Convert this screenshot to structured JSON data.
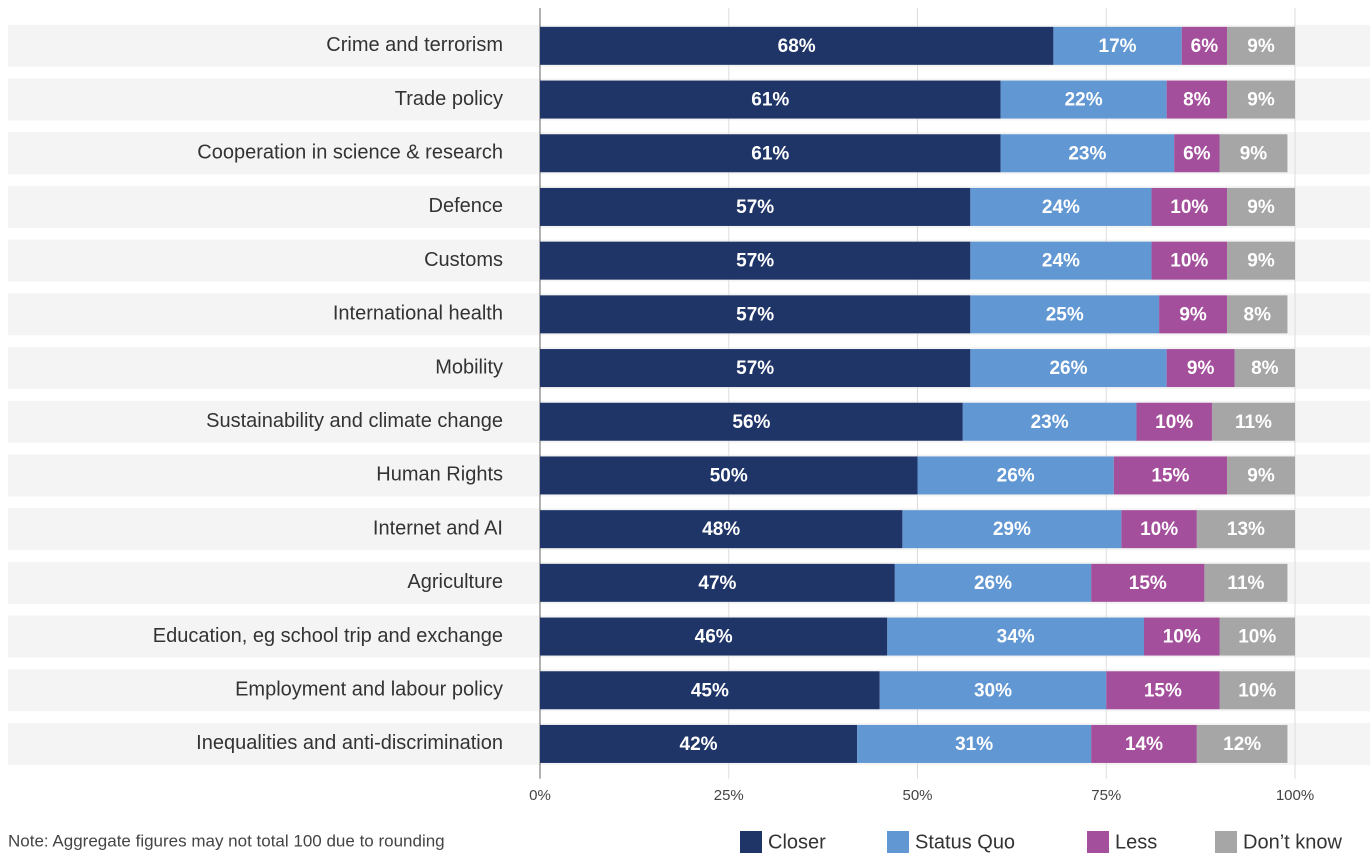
{
  "chart_data": {
    "type": "stacked_bar_horizontal",
    "note": "Note: Aggregate figures may not total 100 due to rounding",
    "categories": [
      "Crime and terrorism",
      "Trade policy",
      "Cooperation in science & research",
      "Defence",
      "Customs",
      "International health",
      "Mobility",
      "Sustainability and climate change",
      "Human Rights",
      "Internet and AI",
      "Agriculture",
      "Education, eg school trip and exchange",
      "Employment and labour policy",
      "Inequalities and anti-discrimination"
    ],
    "series": [
      {
        "name": "Closer",
        "color": "#1f3467",
        "values": [
          68,
          61,
          61,
          57,
          57,
          57,
          57,
          56,
          50,
          48,
          47,
          46,
          45,
          42
        ],
        "value_labels": [
          "68%",
          "61%",
          "61%",
          "57%",
          "57%",
          "57%",
          "57%",
          "56%",
          "50%",
          "48%",
          "47%",
          "46%",
          "45%",
          "42%"
        ]
      },
      {
        "name": "Status Quo",
        "color": "#6197d2",
        "values": [
          17,
          22,
          23,
          24,
          24,
          25,
          26,
          23,
          26,
          29,
          26,
          34,
          30,
          31
        ],
        "value_labels": [
          "17%",
          "22%",
          "23%",
          "24%",
          "24%",
          "25%",
          "26%",
          "23%",
          "26%",
          "29%",
          "26%",
          "34%",
          "30%",
          "31%"
        ]
      },
      {
        "name": "Less",
        "color": "#a34f9b",
        "values": [
          6,
          8,
          6,
          10,
          10,
          9,
          9,
          10,
          15,
          10,
          15,
          10,
          15,
          14
        ],
        "value_labels": [
          "6%",
          "8%",
          "6%",
          "10%",
          "10%",
          "9%",
          "9%",
          "10%",
          "15%",
          "10%",
          "15%",
          "10%",
          "15%",
          "14%"
        ]
      },
      {
        "name": "Don’t know",
        "color": "#a6a6a6",
        "values": [
          9,
          9,
          9,
          9,
          9,
          8,
          8,
          11,
          9,
          13,
          11,
          10,
          10,
          12
        ],
        "value_labels": [
          "9%",
          "9%",
          "9%",
          "9%",
          "9%",
          "8%",
          "8%",
          "11%",
          "9%",
          "13%",
          "11%",
          "10%",
          "10%",
          "12%"
        ]
      }
    ],
    "xlim": [
      0,
      100
    ],
    "xticks": [
      {
        "value": 0,
        "label": "0%"
      },
      {
        "value": 25,
        "label": "25%"
      },
      {
        "value": 50,
        "label": "50%"
      },
      {
        "value": 75,
        "label": "75%"
      },
      {
        "value": 100,
        "label": "100%"
      }
    ],
    "grid": true,
    "legend": "bottom-right"
  }
}
